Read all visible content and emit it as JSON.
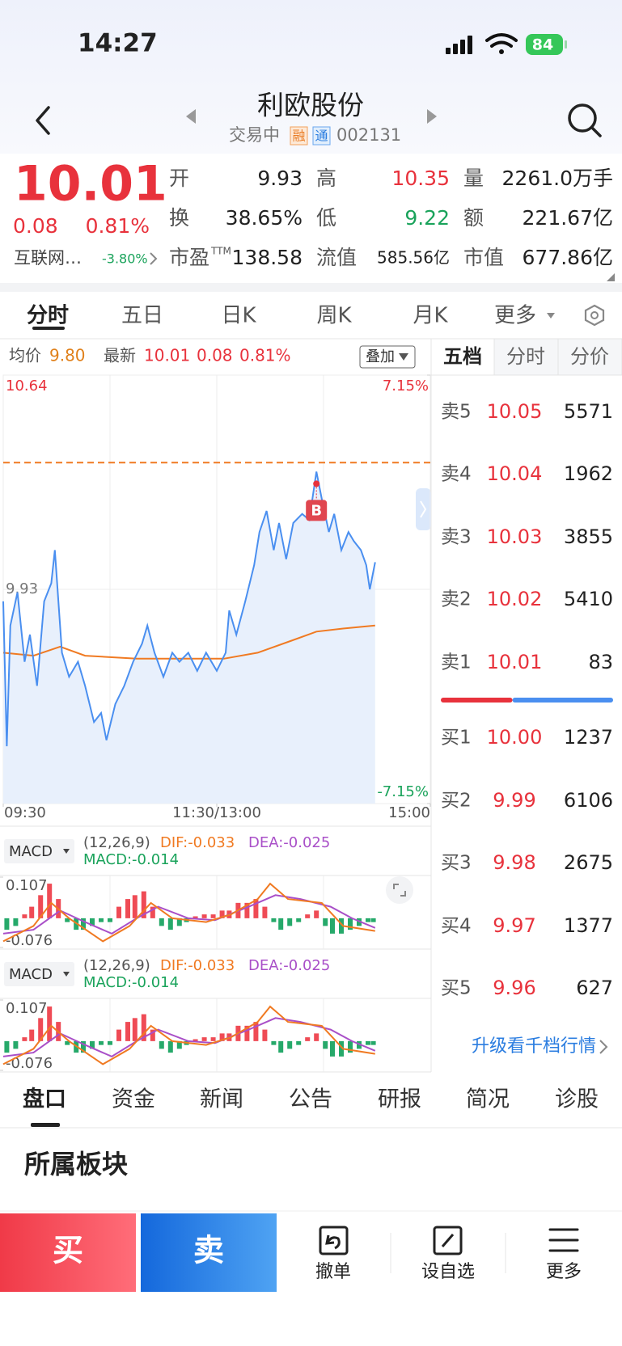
{
  "status_bar": {
    "time": "14:27",
    "battery": "84"
  },
  "header": {
    "title": "利欧股份",
    "status": "交易中",
    "badges": [
      "融",
      "通"
    ],
    "code": "002131"
  },
  "quote": {
    "price": "10.01",
    "change": "0.08",
    "change_pct": "0.81%",
    "sector": "互联网…",
    "sector_change": "-3.80%",
    "stats": [
      {
        "label": "开",
        "value": "9.93"
      },
      {
        "label": "高",
        "value": "10.35",
        "color": "#e8323c"
      },
      {
        "label": "量",
        "value": "2261.0万手"
      },
      {
        "label": "换",
        "value": "38.65%"
      },
      {
        "label": "低",
        "value": "9.22",
        "color": "#1aa35b"
      },
      {
        "label": "额",
        "value": "221.67亿"
      },
      {
        "label": "市盈",
        "label_sup": "TTM",
        "value": "138.58"
      },
      {
        "label": "流值",
        "value": "585.56亿"
      },
      {
        "label": "市值",
        "value": "677.86亿"
      }
    ]
  },
  "tabs": {
    "items": [
      "分时",
      "五日",
      "日K",
      "周K",
      "月K",
      "更多"
    ]
  },
  "info_row": {
    "avg_label": "均价",
    "avg": "9.80",
    "latest_label": "最新",
    "latest": "10.01",
    "change": "0.08",
    "change_pct": "0.81%",
    "overlay": "叠加"
  },
  "intraday_chart": {
    "type": "line",
    "xlim": [
      0,
      240
    ],
    "ylim": [
      9.22,
      10.64
    ],
    "y2lim": [
      -7.15,
      7.15
    ],
    "yticks": [
      10.64,
      9.93,
      9.22
    ],
    "y2ticks": [
      {
        "value": 7.15,
        "label": "7.15%"
      },
      {
        "value": -7.15,
        "label": "-7.15%"
      }
    ],
    "xticks": [
      {
        "value": 0,
        "label": "09:30"
      },
      {
        "value": 120,
        "label": "11:30/13:00"
      },
      {
        "value": 240,
        "label": "15:00"
      }
    ],
    "xgrid": [
      60,
      120,
      180
    ],
    "reference_line": 10.35,
    "trade_marker": {
      "label": "B",
      "x": 176,
      "value": 10.28
    },
    "price": {
      "color": "#4a8ff0",
      "x": [
        0,
        2,
        4,
        8,
        12,
        15,
        19,
        23,
        27,
        29,
        33,
        37,
        42,
        46,
        51,
        55,
        58,
        63,
        68,
        73,
        78,
        81,
        85,
        90,
        95,
        99,
        104,
        109,
        114,
        120,
        125,
        127,
        131,
        136,
        141,
        144,
        148,
        152,
        155,
        159,
        163,
        168,
        172,
        176,
        179,
        183,
        186,
        190,
        194,
        197,
        201,
        204,
        206,
        209
      ],
      "values": [
        9.89,
        9.41,
        9.81,
        9.92,
        9.69,
        9.78,
        9.61,
        9.89,
        9.95,
        10.06,
        9.72,
        9.64,
        9.69,
        9.61,
        9.49,
        9.52,
        9.43,
        9.55,
        9.61,
        9.69,
        9.75,
        9.81,
        9.72,
        9.64,
        9.72,
        9.69,
        9.72,
        9.66,
        9.72,
        9.66,
        9.72,
        9.86,
        9.78,
        9.89,
        10.01,
        10.12,
        10.19,
        10.06,
        10.15,
        10.03,
        10.15,
        10.18,
        10.16,
        10.32,
        10.23,
        10.12,
        10.18,
        10.06,
        10.12,
        10.09,
        10.06,
        10.01,
        9.93,
        10.02
      ]
    },
    "average": {
      "color": "#f07a22",
      "x": [
        0,
        17,
        32,
        46,
        75,
        124,
        143,
        162,
        176,
        191,
        209
      ],
      "values": [
        9.72,
        9.71,
        9.74,
        9.71,
        9.7,
        9.7,
        9.72,
        9.76,
        9.79,
        9.8,
        9.81
      ]
    }
  },
  "macd": {
    "button": "MACD",
    "params": "(12,26,9)",
    "dif": "DIF:-0.033",
    "dea": "DEA:-0.025",
    "macd": "MACD:-0.014",
    "xlim": [
      0,
      240
    ],
    "ylim": [
      -0.076,
      0.107
    ],
    "yticks": [
      0.107,
      -0.076
    ],
    "bar_x": [
      2,
      7,
      12,
      16,
      21,
      26,
      31,
      36,
      41,
      45,
      50,
      55,
      60,
      65,
      70,
      74,
      79,
      84,
      89,
      94,
      99,
      103,
      108,
      113,
      118,
      123,
      127,
      132,
      137,
      142,
      147,
      152,
      156,
      161,
      166,
      171,
      176,
      181,
      185,
      190,
      195,
      200,
      205,
      208
    ],
    "bars": [
      -0.03,
      -0.02,
      0.01,
      0.03,
      0.06,
      0.09,
      0.05,
      -0.01,
      -0.03,
      -0.03,
      -0.02,
      -0.01,
      -0.01,
      0.03,
      0.05,
      0.06,
      0.07,
      0.03,
      -0.02,
      -0.03,
      -0.02,
      -0.01,
      0.005,
      0.01,
      0.01,
      0.02,
      0.02,
      0.04,
      0.04,
      0.05,
      0.03,
      -0.01,
      -0.03,
      -0.02,
      -0.01,
      0.01,
      0.02,
      -0.02,
      -0.04,
      -0.04,
      -0.03,
      -0.02,
      -0.01,
      -0.01
    ],
    "dif_line": {
      "color": "#f07a22",
      "x": [
        0,
        17,
        27,
        37,
        56,
        71,
        83,
        95,
        114,
        128,
        143,
        150,
        160,
        179,
        191,
        209
      ],
      "values": [
        -0.06,
        -0.02,
        0.04,
        0.0,
        -0.06,
        -0.02,
        0.04,
        0.0,
        -0.01,
        0.01,
        0.05,
        0.09,
        0.05,
        0.04,
        -0.02,
        -0.033
      ]
    },
    "dea_line": {
      "color": "#a94fc8",
      "x": [
        0,
        17,
        32,
        46,
        61,
        75,
        87,
        104,
        119,
        138,
        153,
        167,
        184,
        196,
        209
      ],
      "values": [
        -0.04,
        -0.03,
        0.02,
        -0.01,
        -0.04,
        0.0,
        0.03,
        0.0,
        -0.005,
        0.03,
        0.06,
        0.05,
        0.03,
        0.0,
        -0.025
      ]
    }
  },
  "order_book": {
    "tabs": [
      "五档",
      "分时",
      "分价"
    ],
    "asks": [
      {
        "label": "卖5",
        "price": "10.05",
        "volume": 5571
      },
      {
        "label": "卖4",
        "price": "10.04",
        "volume": 1962
      },
      {
        "label": "卖3",
        "price": "10.03",
        "volume": 3855
      },
      {
        "label": "卖2",
        "price": "10.02",
        "volume": 5410
      },
      {
        "label": "卖1",
        "price": "10.01",
        "volume": 83
      }
    ],
    "bids": [
      {
        "label": "买1",
        "price": "10.00",
        "volume": 1237
      },
      {
        "label": "买2",
        "price": "9.99",
        "volume": 6106
      },
      {
        "label": "买3",
        "price": "9.98",
        "volume": 2675
      },
      {
        "label": "买4",
        "price": "9.97",
        "volume": 1377
      },
      {
        "label": "买5",
        "price": "9.96",
        "volume": 627
      }
    ],
    "link": "升级看千档行情"
  },
  "bottom_tabs": {
    "items": [
      "盘口",
      "资金",
      "新闻",
      "公告",
      "研报",
      "简况",
      "诊股"
    ]
  },
  "section": {
    "title": "所属板块"
  },
  "actions": {
    "buy": "买",
    "sell": "卖",
    "items": [
      "撤单",
      "设自选",
      "更多"
    ]
  }
}
